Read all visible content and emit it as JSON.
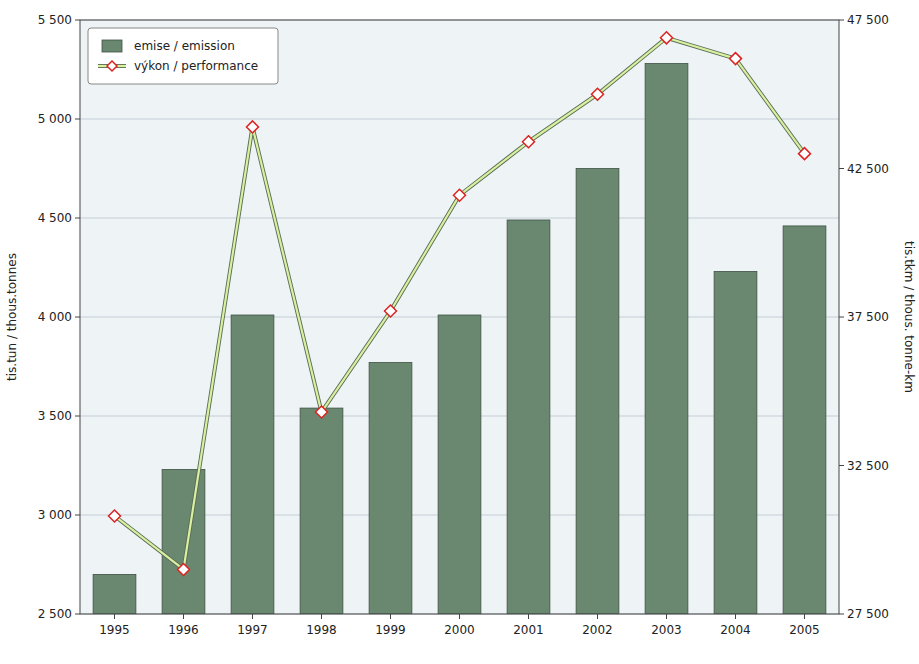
{
  "chart_data": {
    "type": "bar",
    "categories": [
      1995,
      1996,
      1997,
      1998,
      1999,
      2000,
      2001,
      2002,
      2003,
      2004,
      2005
    ],
    "series": [
      {
        "name": "emise / emission",
        "type": "bar",
        "color": "#6a8870",
        "values": [
          2700,
          3230,
          4010,
          3540,
          3770,
          4010,
          4490,
          4750,
          5280,
          4230,
          4460
        ]
      },
      {
        "name": "výkon / performance",
        "type": "line",
        "axis": "y2",
        "color": "#d8f0a0",
        "marker": "diamond",
        "line_style": "solid",
        "values": [
          30800,
          29000,
          43900,
          34300,
          37700,
          41600,
          43400,
          45000,
          46900,
          46200,
          43000
        ]
      }
    ],
    "ylabel": "tis.tun / thous.tonnes",
    "y2label": "tis.tkm / thous. tonne-km",
    "ylim": [
      2500,
      5500
    ],
    "yticks": [
      {
        "value": 2500,
        "label": "2 500"
      },
      {
        "value": 3000,
        "label": "3 000"
      },
      {
        "value": 3500,
        "label": "3 500"
      },
      {
        "value": 4000,
        "label": "4 000"
      },
      {
        "value": 4500,
        "label": "4 500"
      },
      {
        "value": 5000,
        "label": "5 000"
      },
      {
        "value": 5500,
        "label": "5 500"
      }
    ],
    "y2lim": [
      27500,
      47500
    ],
    "y2ticks": [
      {
        "value": 27500,
        "label": "27 500"
      },
      {
        "value": 32500,
        "label": "32 500"
      },
      {
        "value": 37500,
        "label": "37 500"
      },
      {
        "value": 42500,
        "label": "42 500"
      },
      {
        "value": 47500,
        "label": "47 500"
      }
    ],
    "grid": true,
    "legend": "upper left"
  }
}
